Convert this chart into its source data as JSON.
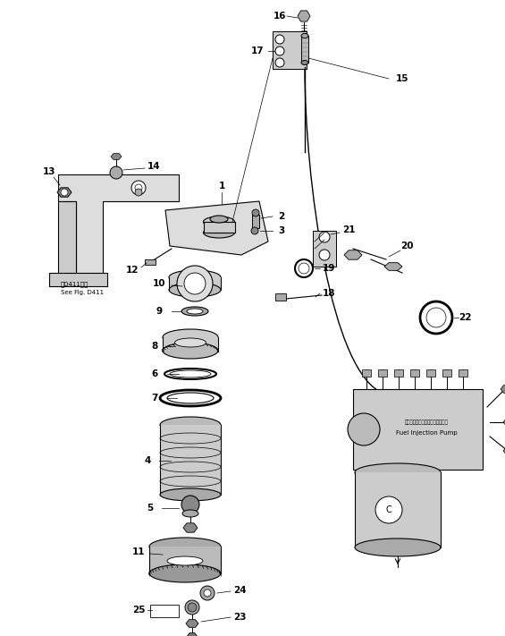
{
  "bg_color": "#ffffff",
  "line_color": "#000000",
  "fig_width": 5.65,
  "fig_height": 7.11,
  "dpi": 100,
  "note_text1": "図D411参照",
  "note_text2": "See Fig. D411",
  "fuel_jp": "フェエルインジェクションポンプ",
  "fuel_en": "Fuel Injection Pump"
}
